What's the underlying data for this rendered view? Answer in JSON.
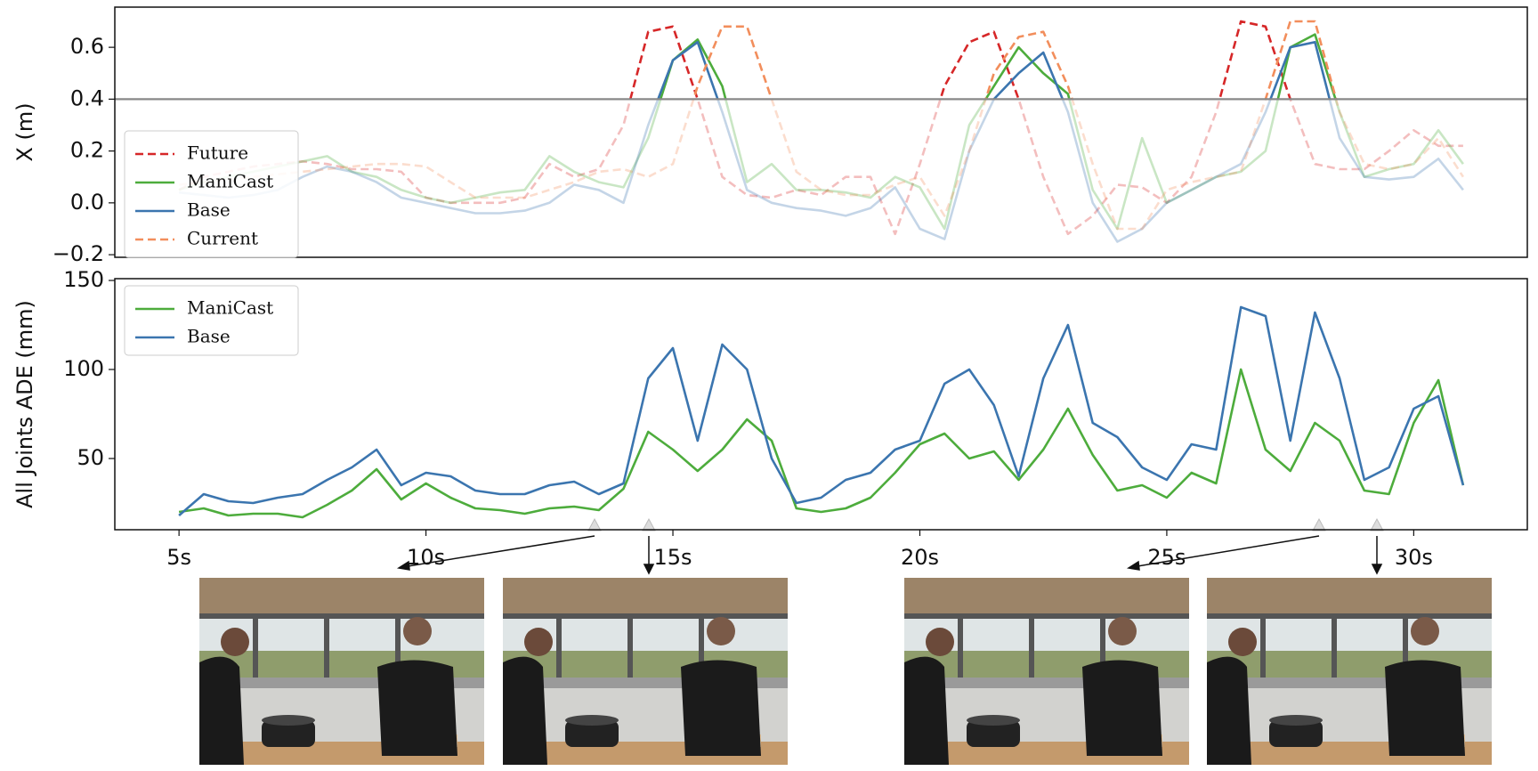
{
  "chart_data": [
    {
      "type": "line",
      "ylabel": "X (m)",
      "xlim": [
        3.7,
        32.3
      ],
      "ylim": [
        -0.21,
        0.755
      ],
      "yticks": [
        {
          "value": -0.2,
          "label": "−0.2"
        },
        {
          "value": 0,
          "label": "0.0"
        },
        0.2,
        0.4,
        0.6
      ],
      "threshold": 0.4,
      "legend": "upper left",
      "x": [
        5,
        5.5,
        6,
        6.5,
        7,
        7.5,
        8,
        8.5,
        9,
        9.5,
        10,
        10.5,
        11,
        11.5,
        12,
        12.5,
        13,
        13.5,
        14,
        14.5,
        15,
        15.5,
        16,
        16.5,
        17,
        17.5,
        18,
        18.5,
        19,
        19.5,
        20,
        20.5,
        21,
        21.5,
        22,
        22.5,
        23,
        23.5,
        24,
        24.5,
        25,
        25.5,
        26,
        26.5,
        27,
        27.5,
        28,
        28.5,
        29,
        29.5,
        30,
        30.5,
        31
      ],
      "series": [
        {
          "name": "Future",
          "color": "#d62728",
          "dashed": true,
          "values": [
            0.05,
            0.1,
            0.12,
            0.14,
            0.15,
            0.16,
            0.15,
            0.13,
            0.13,
            0.12,
            0.02,
            0.0,
            0.0,
            0.0,
            0.02,
            0.15,
            0.1,
            0.13,
            0.3,
            0.66,
            0.68,
            0.4,
            0.1,
            0.03,
            0.02,
            0.05,
            0.03,
            0.1,
            0.1,
            -0.12,
            0.15,
            0.45,
            0.62,
            0.66,
            0.4,
            0.1,
            -0.12,
            -0.05,
            0.07,
            0.06,
            0.0,
            0.1,
            0.35,
            0.7,
            0.68,
            0.4,
            0.15,
            0.13,
            0.13,
            0.2,
            0.28,
            0.22,
            0.22
          ]
        },
        {
          "name": "ManiCast",
          "color": "#4dac3c",
          "dashed": false,
          "values": [
            0.05,
            0.08,
            0.1,
            0.12,
            0.14,
            0.16,
            0.18,
            0.12,
            0.1,
            0.05,
            0.02,
            0.0,
            0.02,
            0.04,
            0.05,
            0.18,
            0.12,
            0.08,
            0.06,
            0.25,
            0.55,
            0.63,
            0.45,
            0.08,
            0.15,
            0.05,
            0.05,
            0.04,
            0.02,
            0.1,
            0.06,
            -0.1,
            0.3,
            0.45,
            0.6,
            0.5,
            0.42,
            0.05,
            -0.1,
            0.25,
            0.0,
            0.05,
            0.1,
            0.12,
            0.2,
            0.6,
            0.65,
            0.35,
            0.1,
            0.13,
            0.15,
            0.28,
            0.15
          ]
        },
        {
          "name": "Base",
          "color": "#3b75af",
          "dashed": false,
          "values": [
            0.04,
            0.03,
            0.02,
            0.03,
            0.05,
            0.1,
            0.14,
            0.12,
            0.08,
            0.02,
            0.0,
            -0.02,
            -0.04,
            -0.04,
            -0.03,
            0.0,
            0.07,
            0.05,
            0.0,
            0.3,
            0.55,
            0.62,
            0.35,
            0.05,
            0.0,
            -0.02,
            -0.03,
            -0.05,
            -0.02,
            0.06,
            -0.1,
            -0.14,
            0.2,
            0.4,
            0.5,
            0.58,
            0.35,
            0.0,
            -0.15,
            -0.1,
            0.0,
            0.05,
            0.1,
            0.15,
            0.35,
            0.6,
            0.62,
            0.25,
            0.1,
            0.09,
            0.1,
            0.17,
            0.05
          ]
        },
        {
          "name": "Current",
          "color": "#f28e5c",
          "dashed": true,
          "values": [
            0.07,
            0.08,
            0.09,
            0.1,
            0.11,
            0.12,
            0.13,
            0.14,
            0.15,
            0.15,
            0.14,
            0.08,
            0.02,
            0.02,
            0.02,
            0.05,
            0.08,
            0.12,
            0.13,
            0.1,
            0.15,
            0.45,
            0.68,
            0.68,
            0.4,
            0.12,
            0.05,
            0.03,
            0.03,
            0.07,
            0.1,
            -0.05,
            0.2,
            0.5,
            0.64,
            0.66,
            0.45,
            0.15,
            -0.1,
            -0.1,
            0.05,
            0.08,
            0.1,
            0.12,
            0.4,
            0.7,
            0.7,
            0.35,
            0.15,
            0.13,
            0.15,
            0.25,
            0.1
          ]
        }
      ]
    },
    {
      "type": "line",
      "ylabel": "All Joints ADE (mm)",
      "xlim": [
        3.7,
        32.3
      ],
      "xticks": [
        {
          "value": 5,
          "label": "5s"
        },
        {
          "value": 10,
          "label": "10s"
        },
        {
          "value": 15,
          "label": "15s"
        },
        {
          "value": 20,
          "label": "20s"
        },
        {
          "value": 25,
          "label": "25s"
        },
        {
          "value": 30,
          "label": "30s"
        }
      ],
      "ylim": [
        10,
        151
      ],
      "yticks": [
        50,
        100,
        150
      ],
      "legend": "upper left",
      "x": [
        5,
        5.5,
        6,
        6.5,
        7,
        7.5,
        8,
        8.5,
        9,
        9.5,
        10,
        10.5,
        11,
        11.5,
        12,
        12.5,
        13,
        13.5,
        14,
        14.5,
        15,
        15.5,
        16,
        16.5,
        17,
        17.5,
        18,
        18.5,
        19,
        19.5,
        20,
        20.5,
        21,
        21.5,
        22,
        22.5,
        23,
        23.5,
        24,
        24.5,
        25,
        25.5,
        26,
        26.5,
        27,
        27.5,
        28,
        28.5,
        29,
        29.5,
        30,
        30.5,
        31
      ],
      "series": [
        {
          "name": "ManiCast",
          "color": "#4dac3c",
          "values": [
            20,
            22,
            18,
            19,
            19,
            17,
            24,
            32,
            44,
            27,
            36,
            28,
            22,
            21,
            19,
            22,
            23,
            21,
            33,
            65,
            55,
            43,
            55,
            72,
            60,
            22,
            20,
            22,
            28,
            42,
            58,
            64,
            50,
            54,
            38,
            55,
            78,
            52,
            32,
            35,
            28,
            42,
            36,
            100,
            55,
            43,
            70,
            60,
            32,
            30,
            70,
            94,
            35
          ]
        },
        {
          "name": "Base",
          "color": "#3b75af",
          "values": [
            18,
            30,
            26,
            25,
            28,
            30,
            38,
            45,
            55,
            35,
            42,
            40,
            32,
            30,
            30,
            35,
            37,
            30,
            36,
            95,
            112,
            60,
            114,
            100,
            50,
            25,
            28,
            38,
            42,
            55,
            60,
            92,
            100,
            80,
            40,
            95,
            125,
            70,
            62,
            45,
            38,
            58,
            55,
            135,
            130,
            60,
            132,
            95,
            38,
            45,
            78,
            85,
            35
          ]
        }
      ]
    }
  ]
}
